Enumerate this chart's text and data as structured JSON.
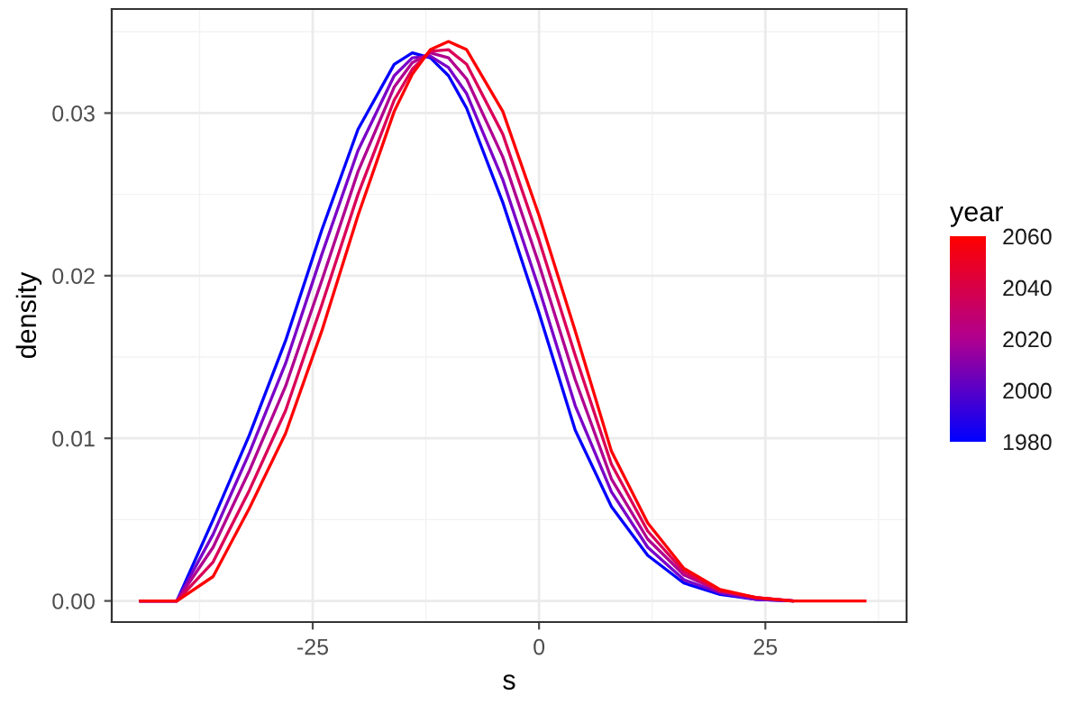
{
  "chart_data": {
    "type": "line",
    "xlabel": "s",
    "ylabel": "density",
    "clabel": "year",
    "x": [
      -44,
      -40,
      -36,
      -32,
      -28,
      -24,
      -20,
      -16,
      -14,
      -12,
      -10,
      -8,
      -4,
      0,
      4,
      8,
      12,
      16,
      20,
      24,
      28,
      32,
      36
    ],
    "series": [
      {
        "color": "#0000ff",
        "values": [
          0,
          0,
          0.005,
          0.0102,
          0.016,
          0.0228,
          0.029,
          0.033,
          0.0337,
          0.0334,
          0.0323,
          0.0303,
          0.0245,
          0.0177,
          0.0105,
          0.0058,
          0.0028,
          0.0011,
          0.0004,
          0.0001,
          0,
          null,
          null
        ]
      },
      {
        "color": "#7a00c8",
        "values": [
          0,
          0,
          0.0041,
          0.0091,
          0.0146,
          0.0213,
          0.0277,
          0.0323,
          0.0334,
          0.0335,
          0.0328,
          0.0312,
          0.0259,
          0.0192,
          0.012,
          0.0067,
          0.0033,
          0.0013,
          0.0005,
          0.0001,
          0,
          null,
          null
        ]
      },
      {
        "color": "#b00090",
        "values": [
          0,
          0,
          0.0033,
          0.008,
          0.0132,
          0.0197,
          0.0264,
          0.0316,
          0.0331,
          0.0337,
          0.0334,
          0.0321,
          0.0273,
          0.0207,
          0.0136,
          0.0075,
          0.0038,
          0.0016,
          0.0006,
          0.0002,
          0,
          null,
          null
        ]
      },
      {
        "color": "#da0058",
        "values": [
          0,
          0,
          0.0024,
          0.0068,
          0.0117,
          0.0182,
          0.025,
          0.0308,
          0.0327,
          0.0338,
          0.0339,
          0.033,
          0.0287,
          0.0222,
          0.0151,
          0.0084,
          0.0043,
          0.0018,
          0.0006,
          0.0002,
          0,
          null,
          null
        ]
      },
      {
        "color": "#ff0000",
        "values": [
          0,
          0,
          0.0015,
          0.0057,
          0.0103,
          0.0166,
          0.0237,
          0.0301,
          0.0324,
          0.0339,
          0.0344,
          0.0339,
          0.0301,
          0.0237,
          0.0166,
          0.0092,
          0.0048,
          0.002,
          0.0007,
          0.0002,
          0,
          0,
          0
        ]
      }
    ],
    "xlim": [
      -47.2,
      40.6
    ],
    "xticks": [
      -25,
      0,
      25
    ],
    "ylim": [
      -0.0013,
      0.0364
    ],
    "yticks": [
      {
        "value": 0,
        "label": "0.00"
      },
      {
        "value": 0.01,
        "label": "0.01"
      },
      {
        "value": 0.02,
        "label": "0.02"
      },
      {
        "value": 0.03,
        "label": "0.03"
      }
    ],
    "clim": [
      1980,
      2060
    ],
    "cticks": [
      1980,
      2000,
      2020,
      2040,
      2060
    ],
    "grid": true,
    "line_style": "solid",
    "marker": "none"
  }
}
